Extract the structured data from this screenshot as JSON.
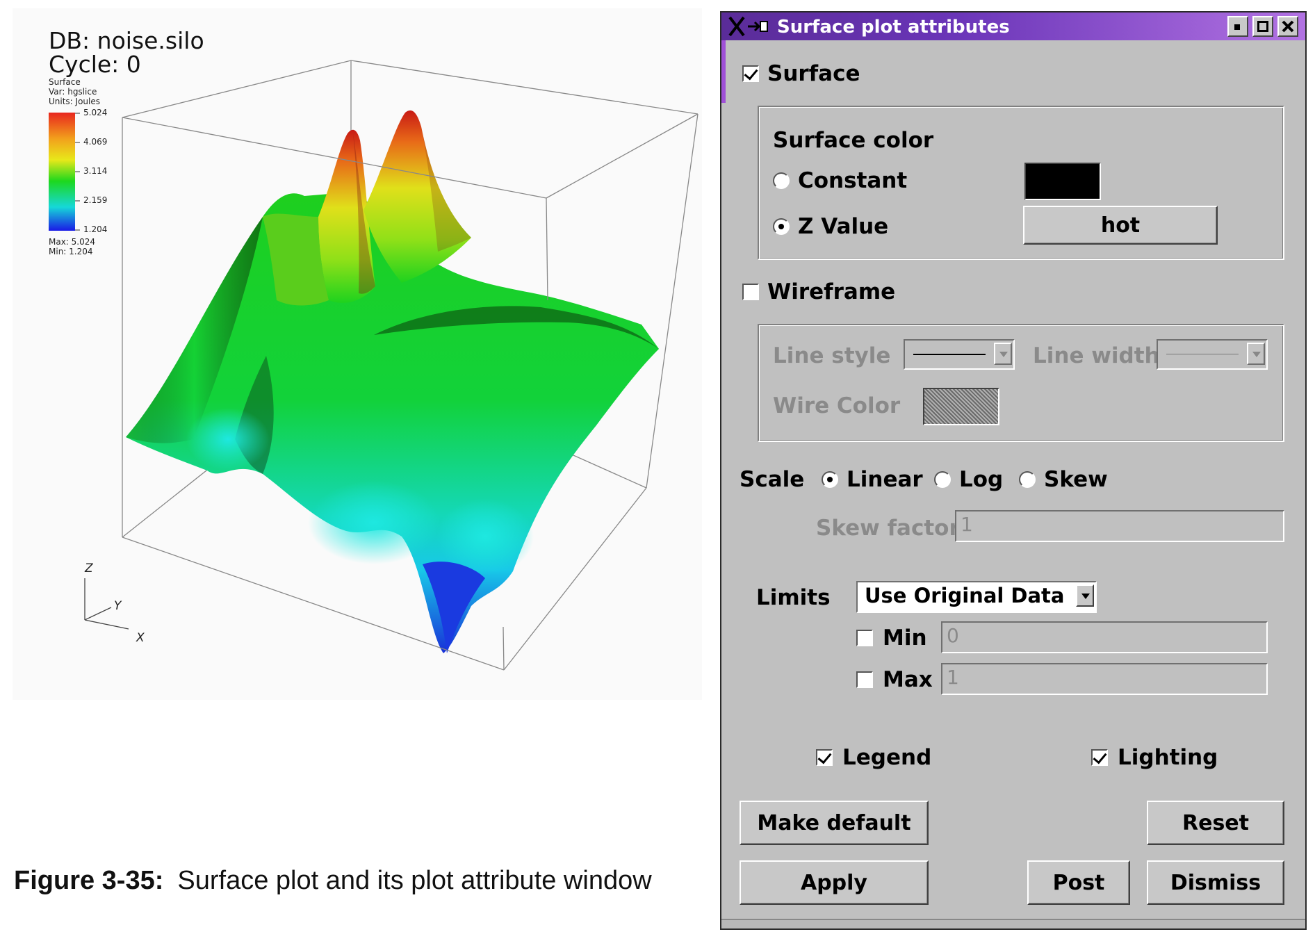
{
  "render": {
    "db_label": "DB: noise.silo",
    "cycle_label": "Cycle: 0",
    "legend": {
      "plot_name": "Surface",
      "var_line": "Var: hgslice",
      "units_line": "Units: Joules",
      "ticks": [
        "5.024",
        "4.069",
        "3.114",
        "2.159",
        "1.204"
      ],
      "max_line": "Max: 5.024",
      "min_line": "Min: 1.204",
      "colors": [
        "#e8261e",
        "#f2a01c",
        "#e8e81a",
        "#1dd81d",
        "#16d8d8",
        "#1a1ae6"
      ]
    },
    "axes": {
      "x": "X",
      "y": "Y",
      "z": "Z"
    }
  },
  "caption": {
    "number": "Figure 3-35:",
    "text": "Surface plot and its plot attribute window"
  },
  "dialog": {
    "title": "Surface plot attributes",
    "surface": {
      "label": "Surface",
      "checked": true
    },
    "surface_color": {
      "heading": "Surface color",
      "constant_label": "Constant",
      "constant_color": "#000000",
      "zvalue_label": "Z Value",
      "colortable_button": "hot",
      "selected": "Z Value"
    },
    "wireframe": {
      "label": "Wireframe",
      "checked": false,
      "line_style_label": "Line style",
      "line_width_label": "Line width",
      "wire_color_label": "Wire Color"
    },
    "scale": {
      "label": "Scale",
      "options": [
        "Linear",
        "Log",
        "Skew"
      ],
      "selected": "Linear",
      "skew_factor_label": "Skew factor",
      "skew_factor_value": "1"
    },
    "limits": {
      "label": "Limits",
      "mode": "Use Original Data",
      "min_label": "Min",
      "min_value": "0",
      "max_label": "Max",
      "max_value": "1"
    },
    "legend": {
      "label": "Legend",
      "checked": true
    },
    "lighting": {
      "label": "Lighting",
      "checked": true
    },
    "buttons": {
      "make_default": "Make default",
      "reset": "Reset",
      "apply": "Apply",
      "post": "Post",
      "dismiss": "Dismiss"
    }
  }
}
